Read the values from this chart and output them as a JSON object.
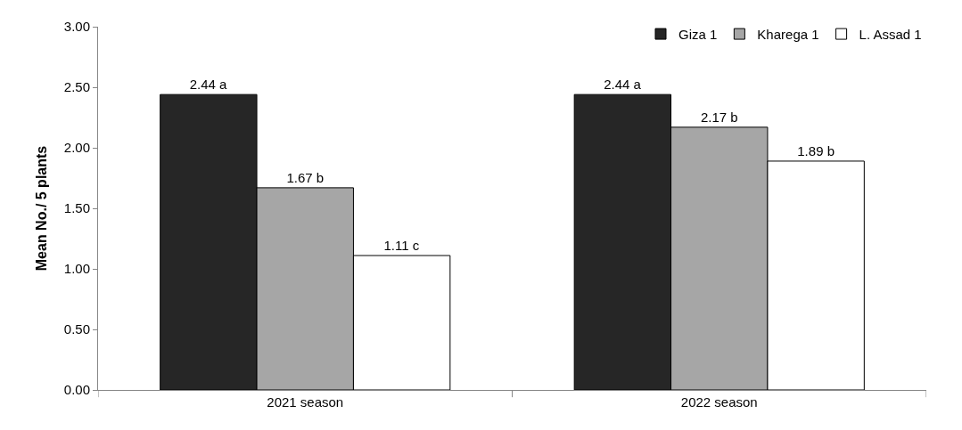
{
  "chart_data": {
    "type": "bar",
    "ylabel": "Mean No./ 5 plants",
    "categories": [
      "2021 season",
      "2022 season"
    ],
    "series": [
      {
        "name": "Giza 1",
        "color": "#262626",
        "values": [
          2.44,
          2.44
        ],
        "value_labels": [
          "2.44 a",
          "2.44 a"
        ]
      },
      {
        "name": "Kharega 1",
        "color": "#a6a6a6",
        "values": [
          1.67,
          2.17
        ],
        "value_labels": [
          "1.67 b",
          "2.17 b"
        ]
      },
      {
        "name": "L. Assad 1",
        "color": "#ffffff",
        "values": [
          1.11,
          1.89
        ],
        "value_labels": [
          "1.11 c",
          "1.89 b"
        ]
      }
    ],
    "ylim": [
      0,
      3
    ],
    "yticks": [
      {
        "value": 0,
        "label": "0.00"
      },
      {
        "value": 0.5,
        "label": "0.50"
      },
      {
        "value": 1,
        "label": "1.00"
      },
      {
        "value": 1.5,
        "label": "1.50"
      },
      {
        "value": 2,
        "label": "2.00"
      },
      {
        "value": 2.5,
        "label": "2.50"
      },
      {
        "value": 3,
        "label": "3.00"
      }
    ],
    "legend": "top right"
  }
}
